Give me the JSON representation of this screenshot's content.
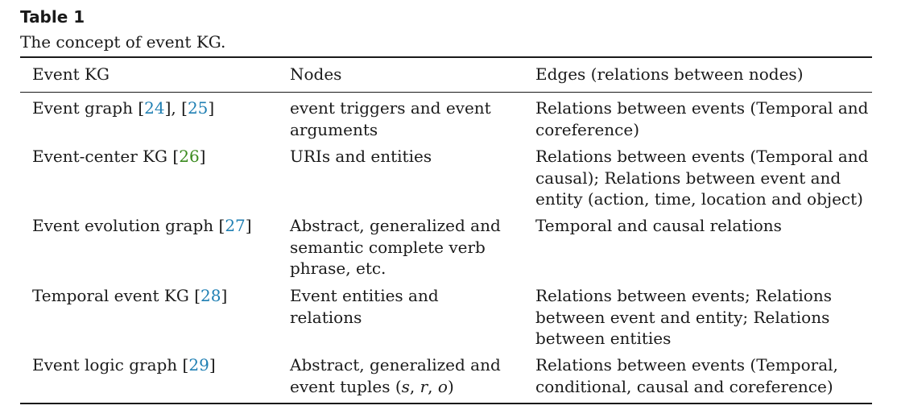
{
  "caption": {
    "title": "Table 1",
    "subtitle": "The concept of event KG."
  },
  "headers": {
    "col1": "Event KG",
    "col2": "Nodes",
    "col3": "Edges (relations between nodes)"
  },
  "rows": [
    {
      "kg": "Event graph ",
      "refs": [
        "24",
        "25"
      ],
      "nodes": [
        "event triggers and event",
        "arguments"
      ],
      "edges": [
        "Relations between events (Temporal and",
        "coreference)"
      ]
    },
    {
      "kg": "Event-center KG ",
      "refs": [
        "26"
      ],
      "nodes": [
        "URIs and entities"
      ],
      "edges": [
        "Relations between events (Temporal and",
        "causal); Relations between event and",
        "entity (action, time, location and object)"
      ]
    },
    {
      "kg": "Event evolution graph ",
      "refs": [
        "27"
      ],
      "nodes": [
        "Abstract, generalized and",
        "semantic complete verb",
        "phrase, etc."
      ],
      "edges": [
        "Temporal and causal relations"
      ]
    },
    {
      "kg": "Temporal event KG ",
      "refs": [
        "28"
      ],
      "nodes": [
        "Event entities and",
        "relations"
      ],
      "edges": [
        "Relations between events; Relations",
        "between event and entity; Relations",
        "between entities"
      ]
    },
    {
      "kg": "Event logic graph ",
      "refs": [
        "29"
      ],
      "nodes": [
        "Abstract, generalized and",
        "event tuples ("
      ],
      "tuple": [
        "s",
        "r",
        "o"
      ],
      "edges": [
        "Relations between events (Temporal,",
        "conditional, causal and coreference)"
      ]
    }
  ],
  "colors": {
    "link": "#1f7fb3",
    "link_alt": "#3b8a1f",
    "text": "#1a1a1a"
  }
}
